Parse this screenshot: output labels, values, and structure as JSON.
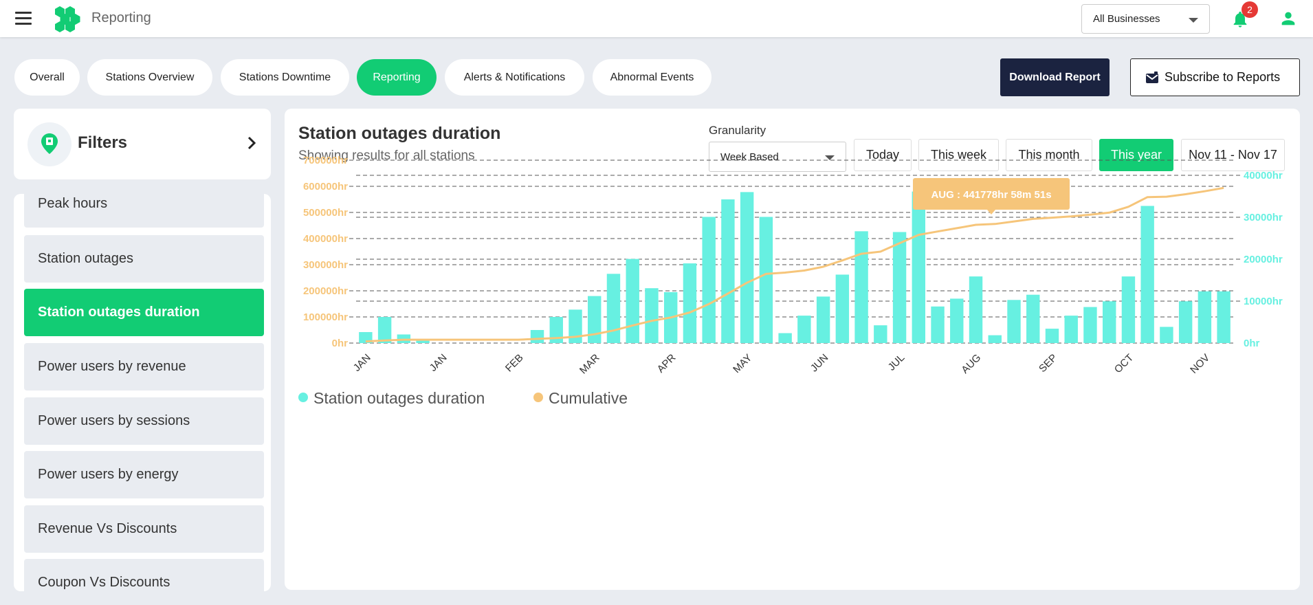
{
  "header": {
    "app_title": "Reporting",
    "business_select": "All Businesses",
    "notification_count": "2"
  },
  "tabs": [
    {
      "label": "Overall",
      "active": false
    },
    {
      "label": "Stations Overview",
      "active": false
    },
    {
      "label": "Stations Downtime",
      "active": false
    },
    {
      "label": "Reporting",
      "active": true
    },
    {
      "label": "Alerts & Notifications",
      "active": false
    },
    {
      "label": "Abnormal Events",
      "active": false
    }
  ],
  "actions": {
    "download_label": "Download Report",
    "subscribe_label": "Subscribe to Reports"
  },
  "filters": {
    "title": "Filters"
  },
  "reports": [
    {
      "label": "Peak hours",
      "active": false
    },
    {
      "label": "Station outages",
      "active": false
    },
    {
      "label": "Station outages duration",
      "active": true
    },
    {
      "label": "Power users by revenue",
      "active": false
    },
    {
      "label": "Power users by sessions",
      "active": false
    },
    {
      "label": "Power users by energy",
      "active": false
    },
    {
      "label": "Revenue Vs Discounts",
      "active": false
    },
    {
      "label": "Coupon Vs Discounts",
      "active": false
    }
  ],
  "panel": {
    "title": "Station outages duration",
    "subtitle": "Showing results for all stations",
    "granularity_label": "Granularity",
    "granularity_value": "Week Based",
    "ranges": [
      {
        "label": "Today",
        "active": false
      },
      {
        "label": "This week",
        "active": false
      },
      {
        "label": "This month",
        "active": false
      },
      {
        "label": "This year",
        "active": true
      }
    ],
    "date_range": "Nov 11 - Nov 17"
  },
  "colors": {
    "accent": "#12cc74",
    "bar": "#67f0e1",
    "line": "#f6c57a",
    "dark_button": "#1b2340"
  },
  "chart_data": {
    "type": "bar",
    "x_tick_labels": [
      "JAN",
      "JAN",
      "FEB",
      "MAR",
      "APR",
      "MAY",
      "JUN",
      "JUL",
      "AUG",
      "SEP",
      "OCT",
      "NOV"
    ],
    "y_left_ticks": [
      "0hr",
      "100000hr",
      "200000hr",
      "300000hr",
      "400000hr",
      "500000hr",
      "600000hr",
      "700000hr"
    ],
    "y_left_range": [
      0,
      700000
    ],
    "y_right_ticks": [
      "0hr",
      "10000hr",
      "20000hr",
      "30000hr",
      "40000hr"
    ],
    "y_right_range": [
      0,
      40000
    ],
    "grid": true,
    "legend_position": "bottom-left",
    "series": [
      {
        "name": "Station outages duration",
        "axis": "left",
        "kind": "bar",
        "values": [
          42000,
          100000,
          33000,
          9000,
          0,
          0,
          0,
          0,
          0,
          50000,
          100000,
          128000,
          180000,
          265000,
          322000,
          210000,
          195000,
          305000,
          483000,
          550000,
          578000,
          483000,
          38000,
          105000,
          178000,
          262000,
          428000,
          68000,
          425000,
          580000,
          140000,
          170000,
          255000,
          30000,
          165000,
          185000,
          55000,
          105000,
          138000,
          160000,
          255000,
          525000,
          62000,
          160000,
          198000,
          198000
        ]
      },
      {
        "name": "Cumulative",
        "axis": "right",
        "kind": "line",
        "values": [
          400,
          600,
          800,
          800,
          800,
          800,
          800,
          800,
          800,
          1000,
          1200,
          1500,
          2100,
          3000,
          4200,
          5300,
          6100,
          7300,
          9300,
          11800,
          14400,
          16500,
          16800,
          17300,
          18200,
          19700,
          21300,
          21800,
          23800,
          25800,
          26600,
          27400,
          28200,
          28400,
          29000,
          29600,
          29900,
          30200,
          30600,
          31100,
          32500,
          34800,
          34900,
          35500,
          36200,
          37000
        ]
      }
    ],
    "tooltip": {
      "text": "AUG : 441778hr 58m 51s"
    }
  }
}
